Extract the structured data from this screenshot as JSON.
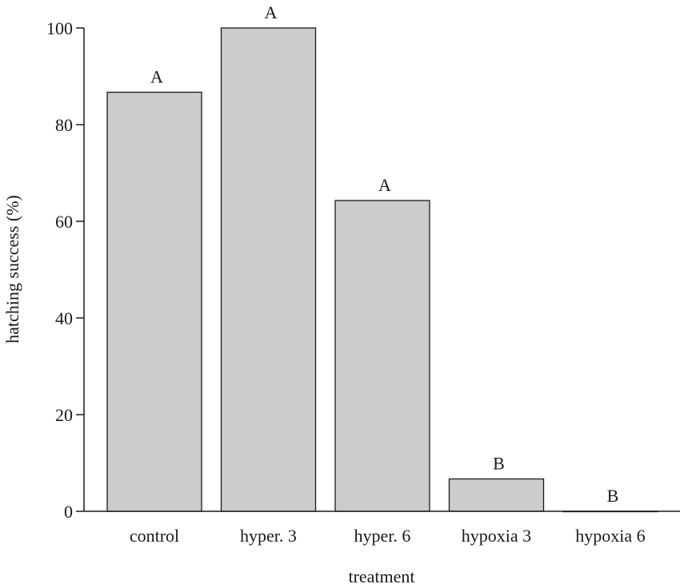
{
  "chart_data": {
    "type": "bar",
    "categories": [
      "control",
      "hyper. 3",
      "hyper. 6",
      "hypoxia 3",
      "hypoxia 6"
    ],
    "values": [
      86.7,
      100,
      64.3,
      6.7,
      0
    ],
    "group_labels": [
      "A",
      "A",
      "A",
      "B",
      "B"
    ],
    "xlabel": "treatment",
    "ylabel": "hatching success (%)",
    "ylim": [
      0,
      100
    ],
    "yticks": [
      0,
      20,
      40,
      60,
      80,
      100
    ],
    "ytick_labels": [
      "0",
      "20",
      "40",
      "60",
      "80",
      "100"
    ],
    "grid": false,
    "colors": {
      "bar_fill": "#cccccc",
      "stroke": "#1a1a1a"
    }
  }
}
